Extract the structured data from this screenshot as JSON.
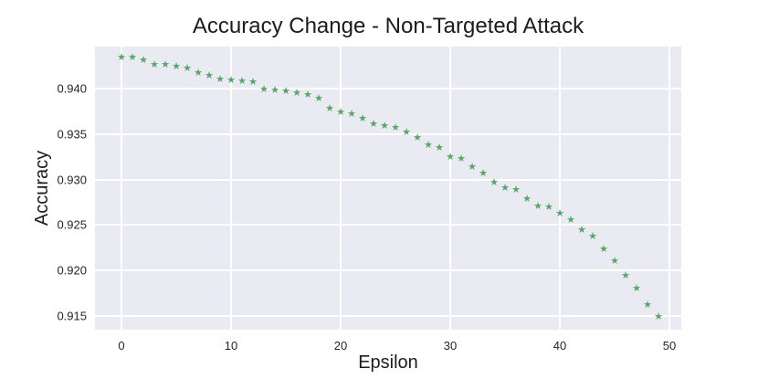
{
  "figure": {
    "background_color": "#ffffff",
    "text_color": "#262626"
  },
  "chart_data": {
    "type": "scatter",
    "title": "Accuracy Change - Non-Targeted Attack",
    "xlabel": "Epsilon",
    "ylabel": "Accuracy",
    "marker": "star",
    "marker_color": "#55a868",
    "plot_background_color": "#eaeaf2",
    "grid_color": "#ffffff",
    "grid": true,
    "legend": "none",
    "xlim": [
      -2.42,
      51.08
    ],
    "ylim": [
      0.9135,
      0.9446
    ],
    "x_ticks": [
      {
        "value": 0,
        "label": "0"
      },
      {
        "value": 10,
        "label": "10"
      },
      {
        "value": 20,
        "label": "20"
      },
      {
        "value": 30,
        "label": "30"
      },
      {
        "value": 40,
        "label": "40"
      },
      {
        "value": 50,
        "label": "50"
      }
    ],
    "y_ticks": [
      {
        "value": 0.915,
        "label": "0.915"
      },
      {
        "value": 0.92,
        "label": "0.920"
      },
      {
        "value": 0.925,
        "label": "0.925"
      },
      {
        "value": 0.93,
        "label": "0.930"
      },
      {
        "value": 0.935,
        "label": "0.935"
      },
      {
        "value": 0.94,
        "label": "0.940"
      }
    ],
    "x": [
      0,
      1,
      2,
      3,
      4,
      5,
      6,
      7,
      8,
      9,
      10,
      11,
      12,
      13,
      14,
      15,
      16,
      17,
      18,
      19,
      20,
      21,
      22,
      23,
      24,
      25,
      26,
      27,
      28,
      29,
      30,
      31,
      32,
      33,
      34,
      35,
      36,
      37,
      38,
      39,
      40,
      41,
      42,
      43,
      44,
      45,
      46,
      47,
      48,
      49
    ],
    "y": [
      0.9433,
      0.9433,
      0.943,
      0.9425,
      0.9425,
      0.9423,
      0.9421,
      0.9416,
      0.9413,
      0.9409,
      0.9408,
      0.9407,
      0.9406,
      0.9398,
      0.9397,
      0.9396,
      0.9394,
      0.9392,
      0.9388,
      0.9377,
      0.9373,
      0.9371,
      0.9366,
      0.936,
      0.9358,
      0.9356,
      0.9351,
      0.9345,
      0.9337,
      0.9334,
      0.9324,
      0.9322,
      0.9313,
      0.9306,
      0.9296,
      0.9289,
      0.9287,
      0.9277,
      0.9269,
      0.9268,
      0.9261,
      0.9254,
      0.9243,
      0.9236,
      0.9222,
      0.9209,
      0.9193,
      0.9179,
      0.9161,
      0.9148
    ],
    "marker_glyph": "★"
  }
}
